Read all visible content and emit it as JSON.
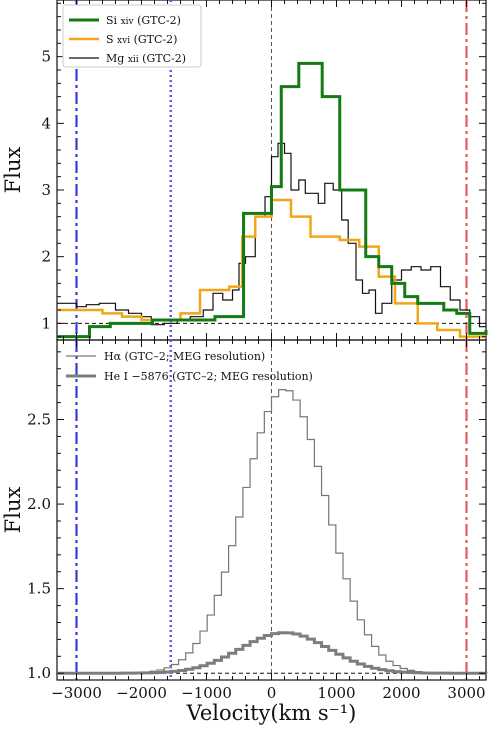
{
  "chart_data": [
    {
      "type": "line",
      "panel": "top",
      "title": "",
      "xlabel": "",
      "ylabel": "Flux",
      "xlim": [
        -3300,
        3300
      ],
      "ylim": [
        0.75,
        5.85
      ],
      "yticks": [
        1,
        2,
        3,
        4,
        5
      ],
      "grid": false,
      "legend_position": "top-left",
      "colors": {
        "vline_blue": "#3a3ad6",
        "vline_blue_dotted": "#5a5af0",
        "vline_red": "#e85a5a",
        "zero_line": "#555555",
        "baseline": "#111111"
      },
      "series": [
        {
          "name": "Si xiv (GTC-2)",
          "color": "#147a14",
          "width": 3,
          "x": [
            -3300,
            -3120,
            -2800,
            -2480,
            -2150,
            -1830,
            -1510,
            -1190,
            -870,
            -550,
            -430,
            -240,
            0,
            150,
            300,
            420,
            600,
            780,
            900,
            1050,
            1250,
            1450,
            1650,
            1850,
            2050,
            2250,
            2450,
            2650,
            2850,
            3050,
            3300
          ],
          "y": [
            0.8,
            0.8,
            0.95,
            1.0,
            1.0,
            1.05,
            1.05,
            1.05,
            1.1,
            1.1,
            2.65,
            2.65,
            3.05,
            4.55,
            4.55,
            4.9,
            4.9,
            4.4,
            4.4,
            3.0,
            3.0,
            2.0,
            1.85,
            1.6,
            1.4,
            1.3,
            1.3,
            1.2,
            1.15,
            0.85,
            0.9
          ]
        },
        {
          "name": "S xvi (GTC-2)",
          "color": "#f2a516",
          "width": 2.5,
          "x": [
            -3300,
            -2950,
            -2600,
            -2300,
            -2000,
            -1700,
            -1400,
            -1100,
            -950,
            -650,
            -450,
            -250,
            0,
            300,
            600,
            800,
            1050,
            1350,
            1650,
            1900,
            2250,
            2550,
            2900,
            3300
          ],
          "y": [
            1.2,
            1.2,
            1.15,
            1.1,
            1.05,
            1.05,
            1.15,
            1.5,
            1.5,
            1.55,
            2.3,
            2.6,
            2.85,
            2.6,
            2.3,
            2.3,
            2.25,
            2.15,
            1.7,
            1.3,
            1.0,
            0.9,
            0.8,
            0.8
          ]
        },
        {
          "name": "Mg xii (GTC-2)",
          "color": "#111111",
          "width": 1.2,
          "x": [
            -3300,
            -3000,
            -2850,
            -2650,
            -2400,
            -2200,
            -2000,
            -1850,
            -1650,
            -1450,
            -1250,
            -1050,
            -900,
            -750,
            -600,
            -500,
            -400,
            -250,
            -100,
            0,
            100,
            200,
            300,
            420,
            520,
            620,
            720,
            820,
            950,
            1080,
            1180,
            1300,
            1400,
            1500,
            1600,
            1700,
            1850,
            2000,
            2150,
            2300,
            2450,
            2600,
            2750,
            2900,
            3050,
            3200,
            3300
          ],
          "y": [
            1.3,
            1.25,
            1.28,
            1.3,
            1.2,
            1.15,
            1.1,
            0.98,
            1.0,
            1.05,
            1.1,
            1.2,
            1.45,
            1.35,
            1.5,
            1.9,
            2.0,
            2.6,
            2.9,
            3.5,
            3.7,
            3.55,
            3.0,
            3.15,
            2.95,
            2.95,
            2.8,
            3.1,
            3.0,
            2.55,
            2.2,
            1.65,
            1.45,
            1.5,
            1.15,
            1.3,
            1.65,
            1.8,
            1.85,
            1.8,
            1.85,
            1.55,
            1.35,
            1.2,
            1.1,
            0.95,
            0.95
          ]
        }
      ],
      "reference_lines": {
        "vertical": [
          -3000,
          -1550,
          0,
          3000
        ],
        "horizontal": [
          1.0
        ]
      }
    },
    {
      "type": "line",
      "panel": "bottom",
      "title": "",
      "xlabel": "Velocity(km s⁻¹)",
      "ylabel": "Flux",
      "xlim": [
        -3300,
        3300
      ],
      "ylim": [
        0.96,
        2.97
      ],
      "yticks": [
        1.0,
        1.5,
        2.0,
        2.5
      ],
      "xticks": [
        -3000,
        -2000,
        -1000,
        0,
        1000,
        2000,
        3000
      ],
      "grid": false,
      "legend_position": "top-left",
      "series": [
        {
          "name": "Hα (GTC–2; MEG resolution)",
          "color": "#777777",
          "width": 1.2,
          "peak": 2.68,
          "center": 150,
          "sigma": 640,
          "steps": 60
        },
        {
          "name": "He I λ5876 (GTC–2; MEG resolution)",
          "color": "#7d7d7d",
          "width": 3,
          "peak": 1.24,
          "center": 150,
          "sigma": 680,
          "steps": 60
        }
      ],
      "reference_lines": {
        "vertical": [
          -3000,
          -1550,
          0,
          3000
        ],
        "horizontal": [
          1.0
        ]
      }
    }
  ],
  "legend_top": [
    {
      "label": "Si",
      "ion": "XIV",
      "rest": " (GTC-2)"
    },
    {
      "label": "S",
      "ion": "XVI",
      "rest": " (GTC-2)"
    },
    {
      "label": "Mg",
      "ion": "XII",
      "rest": " (GTC-2)"
    }
  ],
  "legend_bottom": [
    {
      "label": "Hα (GTC–2; MEG resolution)"
    },
    {
      "label": "He I −5876 (GTC–2; MEG resolution)"
    }
  ]
}
